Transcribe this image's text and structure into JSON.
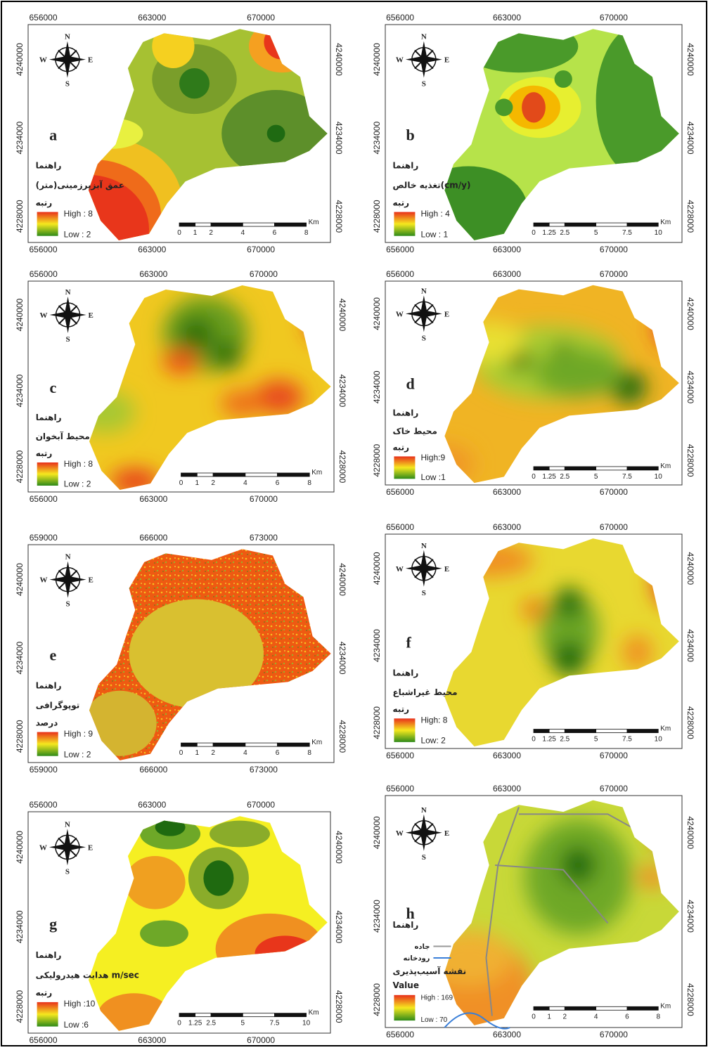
{
  "compass": [
    "N",
    "E",
    "S",
    "W"
  ],
  "panels": [
    {
      "label": "a",
      "xticks": [
        656000,
        663000,
        670000
      ],
      "yticks": [
        4240000,
        4234000,
        4228000
      ],
      "legend": {
        "title": "راهنما",
        "name": "عمق آبزیرزمینی(متر)",
        "unit": "رتبه",
        "high": "High : 8",
        "low": "Low : 2"
      },
      "scale": {
        "ticks": [
          0,
          1,
          2,
          4,
          6,
          8
        ],
        "unit": "Km"
      }
    },
    {
      "label": "b",
      "xticks": [
        656000,
        663000,
        670000
      ],
      "yticks": [
        4240000,
        4234000,
        4228000
      ],
      "legend": {
        "title": "راهنما",
        "name": "تغذیه خالص(cm/y)",
        "unit": "رتبه",
        "high": "High : 4",
        "low": "Low : 1"
      },
      "scale": {
        "ticks": [
          0,
          1.25,
          2.5,
          5,
          7.5,
          10
        ],
        "unit": "Km"
      }
    },
    {
      "label": "c",
      "xticks": [
        656000,
        663000,
        670000
      ],
      "yticks": [
        4240000,
        4234000,
        4228000
      ],
      "legend": {
        "title": "راهنما",
        "name": "محیط آبخوان",
        "unit": "رتبه",
        "high": "High : 8",
        "low": "Low : 2"
      },
      "scale": {
        "ticks": [
          0,
          1,
          2,
          4,
          6,
          8
        ],
        "unit": "Km"
      }
    },
    {
      "label": "d",
      "xticks": [
        656000,
        663000,
        670000
      ],
      "yticks": [
        4240000,
        4234000,
        4228000
      ],
      "legend": {
        "title": "راهنما",
        "name": "محیط خاک",
        "unit": "رتبه",
        "high": "High:9",
        "low": "Low :1"
      },
      "scale": {
        "ticks": [
          0,
          1.25,
          2.5,
          5,
          7.5,
          10
        ],
        "unit": "Km"
      }
    },
    {
      "label": "e",
      "xticks": [
        659000,
        666000,
        673000
      ],
      "yticks": [
        4240000,
        4234000,
        4228000
      ],
      "legend": {
        "title": "راهنما",
        "name": "توپوگرافی",
        "unit": "درصد",
        "high": "High : 9",
        "low": "Low : 2"
      },
      "scale": {
        "ticks": [
          0,
          1,
          2,
          4,
          6,
          8
        ],
        "unit": "Km"
      }
    },
    {
      "label": "f",
      "xticks": [
        656000,
        663000,
        670000
      ],
      "yticks": [
        4240000,
        4234000,
        4228000
      ],
      "legend": {
        "title": "راهنما",
        "name": "محیط غیراشباع",
        "unit": "رتبه",
        "high": "High: 8",
        "low": "Low: 2"
      },
      "scale": {
        "ticks": [
          0,
          1.25,
          2.5,
          5,
          7.5,
          10
        ],
        "unit": "Km"
      }
    },
    {
      "label": "g",
      "xticks": [
        656000,
        663000,
        670000
      ],
      "yticks": [
        4240000,
        4234000,
        4228000
      ],
      "legend": {
        "title": "راهنما",
        "name": "هدایت هیدرولیکی m/sec",
        "unit": "رتبه",
        "high": "High :10",
        "low": "Low :6"
      },
      "scale": {
        "ticks": [
          0,
          1.25,
          2.5,
          5,
          7.5,
          10
        ],
        "unit": "Km"
      }
    },
    {
      "label": "h",
      "xticks": [
        656000,
        663000,
        670000
      ],
      "yticks": [
        4240000,
        4234000,
        4228000
      ],
      "legend": {
        "title": "راهنما",
        "road": "جاده",
        "river": "رودخانه",
        "name": "نقشه آسیب‌پذیری",
        "unit": "Value",
        "high": "High : 169",
        "low": "Low : 70"
      },
      "scale": {
        "ticks": [
          0,
          1,
          2,
          4,
          6,
          8
        ],
        "unit": "Km"
      }
    }
  ]
}
